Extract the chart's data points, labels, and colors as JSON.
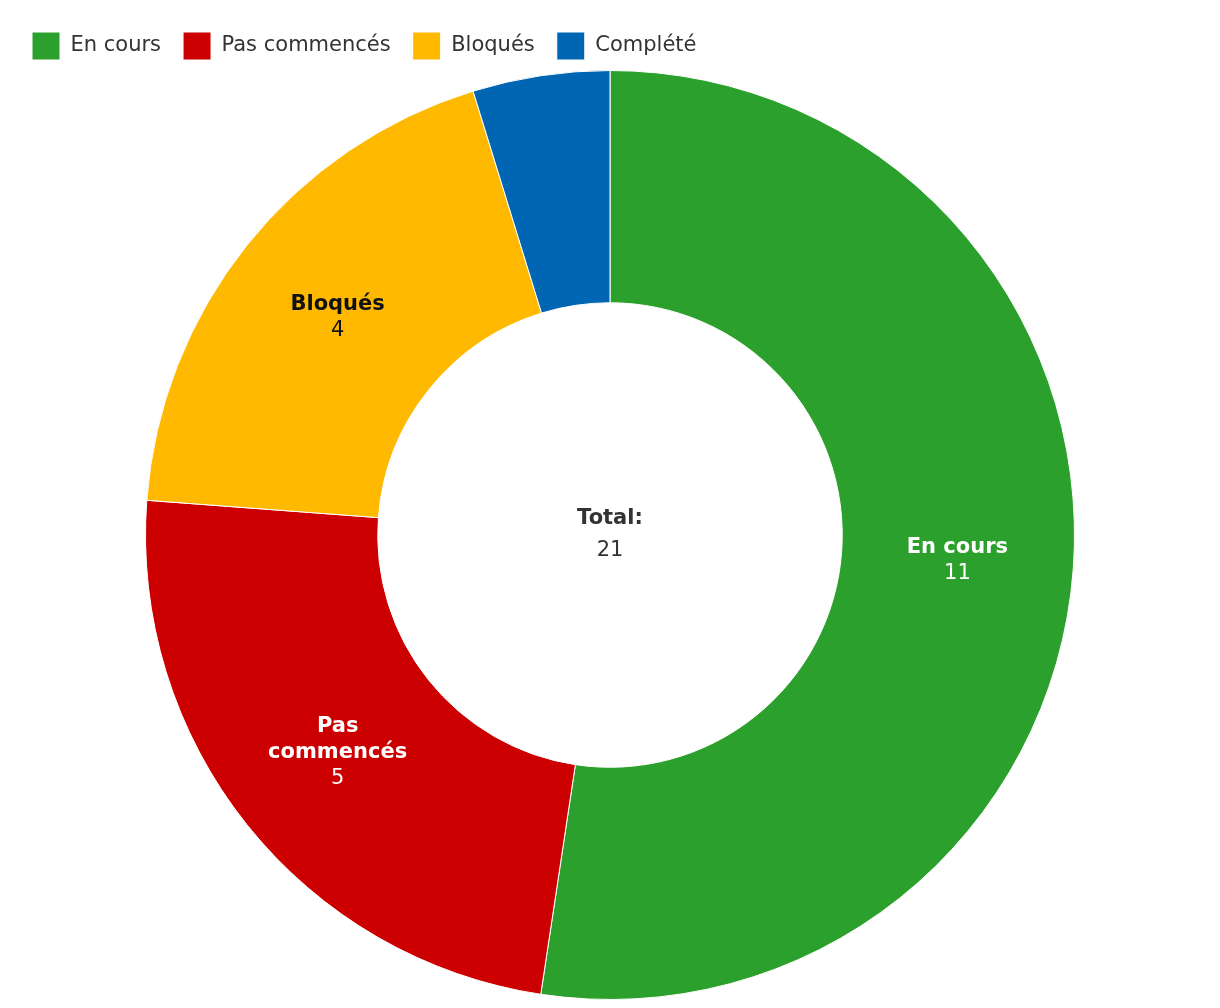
{
  "chart_data": {
    "type": "donut",
    "categories": [
      "En cours",
      "Pas commencés",
      "Bloqués",
      "Complété"
    ],
    "values": [
      11,
      5,
      4,
      1
    ],
    "colors": [
      "#2ca02c",
      "#cc0000",
      "#ffb900",
      "#0066b3"
    ],
    "value_labels": [
      "11",
      "5",
      "4",
      null
    ],
    "legend": "top left",
    "annotations": [
      "Total:",
      "21"
    ]
  }
}
